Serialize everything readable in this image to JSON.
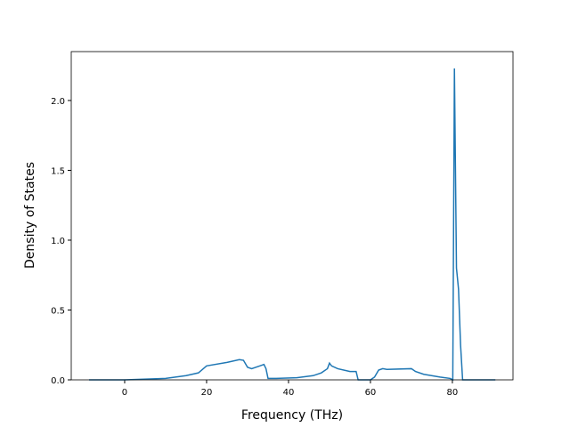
{
  "chart_data": {
    "type": "line",
    "x_label": "Frequency (THz)",
    "y_label": "Density of States",
    "x": [
      -8.7,
      0,
      10,
      15,
      18,
      20,
      25,
      28,
      29,
      30,
      31,
      33,
      34,
      34.5,
      35,
      37,
      42,
      46,
      48,
      49.5,
      50,
      50.5,
      52,
      55,
      56.5,
      57,
      60,
      61,
      62,
      63,
      64,
      70,
      71,
      73,
      77,
      79.5,
      80.1,
      80.5,
      81,
      81.5,
      82,
      82.5,
      90.5
    ],
    "series": [
      {
        "color": "#1f77b4",
        "values": [
          0,
          0,
          0.01,
          0.03,
          0.05,
          0.1,
          0.125,
          0.145,
          0.14,
          0.09,
          0.08,
          0.1,
          0.11,
          0.08,
          0.01,
          0.01,
          0.015,
          0.03,
          0.05,
          0.08,
          0.12,
          0.1,
          0.08,
          0.06,
          0.06,
          0,
          0,
          0.02,
          0.07,
          0.08,
          0.075,
          0.08,
          0.06,
          0.04,
          0.02,
          0.01,
          0,
          2.23,
          0.8,
          0.65,
          0.25,
          0,
          0
        ]
      }
    ],
    "xlim": [
      -13.04,
      94.8
    ],
    "xticks": [
      0,
      20,
      40,
      60,
      80
    ],
    "ylim": [
      0,
      2.35
    ],
    "yticks": [
      {
        "value": 0,
        "label": "0.0"
      },
      0.5,
      {
        "value": 1,
        "label": "1.0"
      },
      1.5,
      {
        "value": 2,
        "label": "2.0"
      }
    ]
  }
}
